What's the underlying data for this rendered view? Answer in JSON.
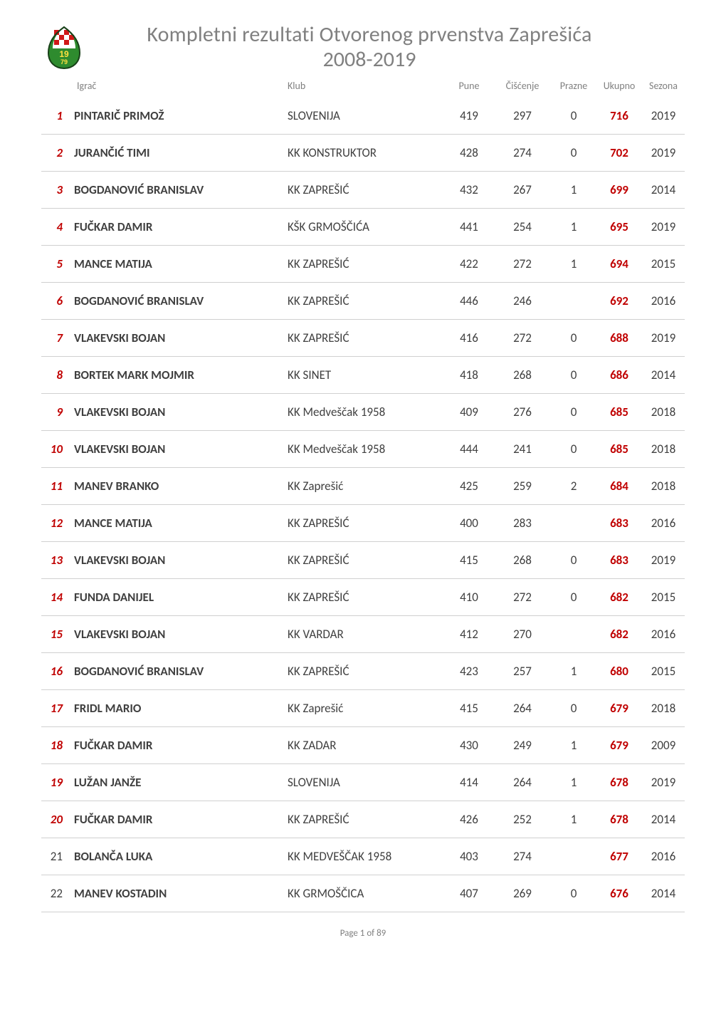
{
  "header": {
    "title_main": "Kompletni rezultati Otvorenog prvenstva Zaprešića",
    "title_sub": "2008-2019"
  },
  "columns": {
    "igrac": "Igrač",
    "klub": "Klub",
    "pune": "Pune",
    "ciscenje": "Čišćenje",
    "prazne": "Prazne",
    "ukupno": "Ukupno",
    "sezona": "Sezona"
  },
  "rows": [
    {
      "rank": "1",
      "rank_hl": true,
      "igrac": "PINTARIČ PRIMOŽ",
      "klub": "SLOVENIJA",
      "pune": "419",
      "cisc": "297",
      "praz": "0",
      "ukup": "716",
      "sez": "2019"
    },
    {
      "rank": "2",
      "rank_hl": true,
      "igrac": "JURANČIĆ TIMI",
      "klub": "KK KONSTRUKTOR",
      "pune": "428",
      "cisc": "274",
      "praz": "0",
      "ukup": "702",
      "sez": "2019"
    },
    {
      "rank": "3",
      "rank_hl": true,
      "igrac": "BOGDANOVIĆ BRANISLAV",
      "klub": "KK ZAPREŠIĆ",
      "pune": "432",
      "cisc": "267",
      "praz": "1",
      "ukup": "699",
      "sez": "2014"
    },
    {
      "rank": "4",
      "rank_hl": true,
      "igrac": "FUČKAR DAMIR",
      "klub": "KŠK GRMOŠČIĆA",
      "pune": "441",
      "cisc": "254",
      "praz": "1",
      "ukup": "695",
      "sez": "2019"
    },
    {
      "rank": "5",
      "rank_hl": true,
      "igrac": "MANCE MATIJA",
      "klub": "KK ZAPREŠIĆ",
      "pune": "422",
      "cisc": "272",
      "praz": "1",
      "ukup": "694",
      "sez": "2015"
    },
    {
      "rank": "6",
      "rank_hl": true,
      "igrac": "BOGDANOVIĆ BRANISLAV",
      "klub": "KK ZAPREŠIĆ",
      "pune": "446",
      "cisc": "246",
      "praz": "",
      "ukup": "692",
      "sez": "2016"
    },
    {
      "rank": "7",
      "rank_hl": true,
      "igrac": "VLAKEVSKI BOJAN",
      "klub": "KK ZAPREŠIĆ",
      "pune": "416",
      "cisc": "272",
      "praz": "0",
      "ukup": "688",
      "sez": "2019"
    },
    {
      "rank": "8",
      "rank_hl": true,
      "igrac": "BORTEK MARK MOJMIR",
      "klub": "KK SINET",
      "pune": "418",
      "cisc": "268",
      "praz": "0",
      "ukup": "686",
      "sez": "2014"
    },
    {
      "rank": "9",
      "rank_hl": true,
      "igrac": "VLAKEVSKI BOJAN",
      "klub": "KK Medveščak 1958",
      "pune": "409",
      "cisc": "276",
      "praz": "0",
      "ukup": "685",
      "sez": "2018"
    },
    {
      "rank": "10",
      "rank_hl": true,
      "igrac": "VLAKEVSKI BOJAN",
      "klub": "KK Medveščak 1958",
      "pune": "444",
      "cisc": "241",
      "praz": "0",
      "ukup": "685",
      "sez": "2018"
    },
    {
      "rank": "11",
      "rank_hl": true,
      "igrac": "MANEV BRANKO",
      "klub": "KK Zaprešić",
      "pune": "425",
      "cisc": "259",
      "praz": "2",
      "ukup": "684",
      "sez": "2018"
    },
    {
      "rank": "12",
      "rank_hl": true,
      "igrac": "MANCE MATIJA",
      "klub": "KK ZAPREŠIĆ",
      "pune": "400",
      "cisc": "283",
      "praz": "",
      "ukup": "683",
      "sez": "2016"
    },
    {
      "rank": "13",
      "rank_hl": true,
      "igrac": "VLAKEVSKI BOJAN",
      "klub": "KK ZAPREŠIĆ",
      "pune": "415",
      "cisc": "268",
      "praz": "0",
      "ukup": "683",
      "sez": "2019"
    },
    {
      "rank": "14",
      "rank_hl": true,
      "igrac": "FUNDA DANIJEL",
      "klub": "KK ZAPREŠIĆ",
      "pune": "410",
      "cisc": "272",
      "praz": "0",
      "ukup": "682",
      "sez": "2015"
    },
    {
      "rank": "15",
      "rank_hl": true,
      "igrac": "VLAKEVSKI BOJAN",
      "klub": "KK VARDAR",
      "pune": "412",
      "cisc": "270",
      "praz": "",
      "ukup": "682",
      "sez": "2016"
    },
    {
      "rank": "16",
      "rank_hl": true,
      "igrac": "BOGDANOVIĆ BRANISLAV",
      "klub": "KK ZAPREŠIĆ",
      "pune": "423",
      "cisc": "257",
      "praz": "1",
      "ukup": "680",
      "sez": "2015"
    },
    {
      "rank": "17",
      "rank_hl": true,
      "igrac": "FRIDL MARIO",
      "klub": "KK Zaprešić",
      "pune": "415",
      "cisc": "264",
      "praz": "0",
      "ukup": "679",
      "sez": "2018"
    },
    {
      "rank": "18",
      "rank_hl": true,
      "igrac": "FUČKAR DAMIR",
      "klub": "KK ZADAR",
      "pune": "430",
      "cisc": "249",
      "praz": "1",
      "ukup": "679",
      "sez": "2009"
    },
    {
      "rank": "19",
      "rank_hl": true,
      "igrac": "LUŽAN JANŽE",
      "klub": "SLOVENIJA",
      "pune": "414",
      "cisc": "264",
      "praz": "1",
      "ukup": "678",
      "sez": "2019"
    },
    {
      "rank": "20",
      "rank_hl": true,
      "igrac": "FUČKAR DAMIR",
      "klub": "KK ZAPREŠIĆ",
      "pune": "426",
      "cisc": "252",
      "praz": "1",
      "ukup": "678",
      "sez": "2014"
    },
    {
      "rank": "21",
      "rank_hl": false,
      "igrac": "BOLANČA LUKA",
      "klub": "KK MEDVEŠČAK 1958",
      "pune": "403",
      "cisc": "274",
      "praz": "",
      "ukup": "677",
      "sez": "2016"
    },
    {
      "rank": "22",
      "rank_hl": false,
      "igrac": "MANEV KOSTADIN",
      "klub": "KK GRMOŠČICA",
      "pune": "407",
      "cisc": "269",
      "praz": "0",
      "ukup": "676",
      "sez": "2014"
    }
  ],
  "footer": {
    "page_label": "Page 1 of 89"
  },
  "colors": {
    "highlight": "#c00000",
    "text_muted": "#808080",
    "text_body": "#404040",
    "row_border": "#d0d0d0",
    "background": "#ffffff"
  },
  "logo": {
    "checker_red": "#d01818",
    "checker_white": "#ffffff",
    "green": "#2e8b2e",
    "year_text": "1979",
    "name": "bowling-club-logo"
  }
}
